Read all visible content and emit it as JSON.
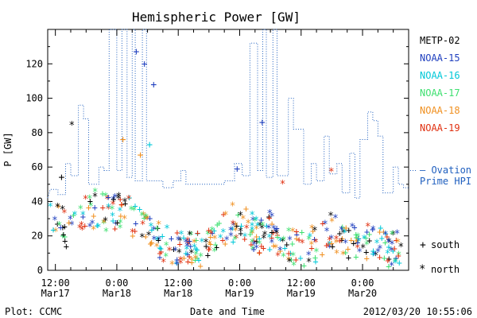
{
  "chart_data": {
    "type": "scatter",
    "title": "Hemispheric Power [GW]",
    "xlabel": "Date and Time",
    "ylabel": "P [GW]",
    "ylim": [
      0,
      140
    ],
    "yticks": [
      0,
      20,
      40,
      60,
      80,
      100,
      120
    ],
    "xticks": [
      {
        "t": 12,
        "time": "12:00",
        "date": "Mar17"
      },
      {
        "t": 24,
        "time": "0:00",
        "date": "Mar18"
      },
      {
        "t": 36,
        "time": "12:00",
        "date": "Mar18"
      },
      {
        "t": 48,
        "time": "0:00",
        "date": "Mar19"
      },
      {
        "t": 60,
        "time": "12:00",
        "date": "Mar19"
      },
      {
        "t": 72,
        "time": "0:00",
        "date": "Mar20"
      }
    ],
    "x_units": "hours since 2012-03-17 00:00",
    "xlim": [
      10.5,
      81
    ],
    "series": [
      {
        "name": "METP-02",
        "color": "#000000"
      },
      {
        "name": "NOAA-15",
        "color": "#1f3fbf"
      },
      {
        "name": "NOAA-16",
        "color": "#00c8d8"
      },
      {
        "name": "NOAA-17",
        "color": "#3ee070"
      },
      {
        "name": "NOAA-18",
        "color": "#f09020"
      },
      {
        "name": "NOAA-19",
        "color": "#e03010"
      }
    ],
    "ovation": {
      "label_line1": "– Ovation",
      "label_line2": "Prime HPI",
      "color": "#1f5fbf",
      "points": [
        [
          10.5,
          42
        ],
        [
          11,
          47
        ],
        [
          12.5,
          47
        ],
        [
          12.5,
          44
        ],
        [
          14,
          44
        ],
        [
          14,
          62
        ],
        [
          15,
          62
        ],
        [
          15,
          55
        ],
        [
          16.5,
          55
        ],
        [
          16.5,
          96
        ],
        [
          17.5,
          96
        ],
        [
          17.5,
          88
        ],
        [
          18.5,
          88
        ],
        [
          18.5,
          50
        ],
        [
          20.5,
          50
        ],
        [
          20.5,
          60
        ],
        [
          21.5,
          60
        ],
        [
          21.5,
          58
        ],
        [
          22.5,
          58
        ],
        [
          22.5,
          140
        ],
        [
          24,
          140
        ],
        [
          24,
          58
        ],
        [
          25,
          58
        ],
        [
          25,
          140
        ],
        [
          26,
          140
        ],
        [
          26,
          54
        ],
        [
          27,
          54
        ],
        [
          27,
          140
        ],
        [
          27.6,
          140
        ],
        [
          27.6,
          52
        ],
        [
          29,
          52
        ],
        [
          29,
          140
        ],
        [
          29.8,
          140
        ],
        [
          29.8,
          52
        ],
        [
          33,
          52
        ],
        [
          33,
          48
        ],
        [
          35,
          48
        ],
        [
          35,
          52
        ],
        [
          36.5,
          52
        ],
        [
          36.5,
          58
        ],
        [
          37.5,
          58
        ],
        [
          37.5,
          50
        ],
        [
          45,
          50
        ],
        [
          45,
          52
        ],
        [
          47,
          52
        ],
        [
          47,
          62
        ],
        [
          48.5,
          62
        ],
        [
          48.5,
          55
        ],
        [
          50,
          55
        ],
        [
          50,
          132
        ],
        [
          51.5,
          132
        ],
        [
          51.5,
          58
        ],
        [
          52.5,
          58
        ],
        [
          52.5,
          140
        ],
        [
          53.2,
          140
        ],
        [
          53.2,
          54
        ],
        [
          54.5,
          54
        ],
        [
          54.5,
          140
        ],
        [
          55.3,
          140
        ],
        [
          55.3,
          55
        ],
        [
          57.5,
          55
        ],
        [
          57.5,
          100
        ],
        [
          58.5,
          100
        ],
        [
          58.5,
          82
        ],
        [
          60.5,
          82
        ],
        [
          60.5,
          50
        ],
        [
          62,
          50
        ],
        [
          62,
          62
        ],
        [
          63,
          62
        ],
        [
          63,
          52
        ],
        [
          64.5,
          52
        ],
        [
          64.5,
          78
        ],
        [
          65.5,
          78
        ],
        [
          65.5,
          56
        ],
        [
          67,
          56
        ],
        [
          67,
          62
        ],
        [
          68,
          62
        ],
        [
          68,
          45
        ],
        [
          69.5,
          45
        ],
        [
          69.5,
          68
        ],
        [
          70.5,
          68
        ],
        [
          70.5,
          42
        ],
        [
          71.5,
          42
        ],
        [
          71.5,
          76
        ],
        [
          73,
          76
        ],
        [
          73,
          92
        ],
        [
          74,
          92
        ],
        [
          74,
          87
        ],
        [
          75,
          87
        ],
        [
          75,
          78
        ],
        [
          76,
          78
        ],
        [
          76,
          45
        ],
        [
          78,
          45
        ],
        [
          78,
          60
        ],
        [
          79,
          60
        ],
        [
          79,
          50
        ],
        [
          80,
          50
        ],
        [
          80,
          48
        ],
        [
          81,
          48
        ]
      ]
    },
    "point_markers": [
      {
        "symbol": "+",
        "label": "south"
      },
      {
        "symbol": "*",
        "label": "north"
      }
    ]
  },
  "footer": {
    "plot_credit": "Plot: CCMC",
    "timestamp": "2012/03/20 10:55:06"
  }
}
